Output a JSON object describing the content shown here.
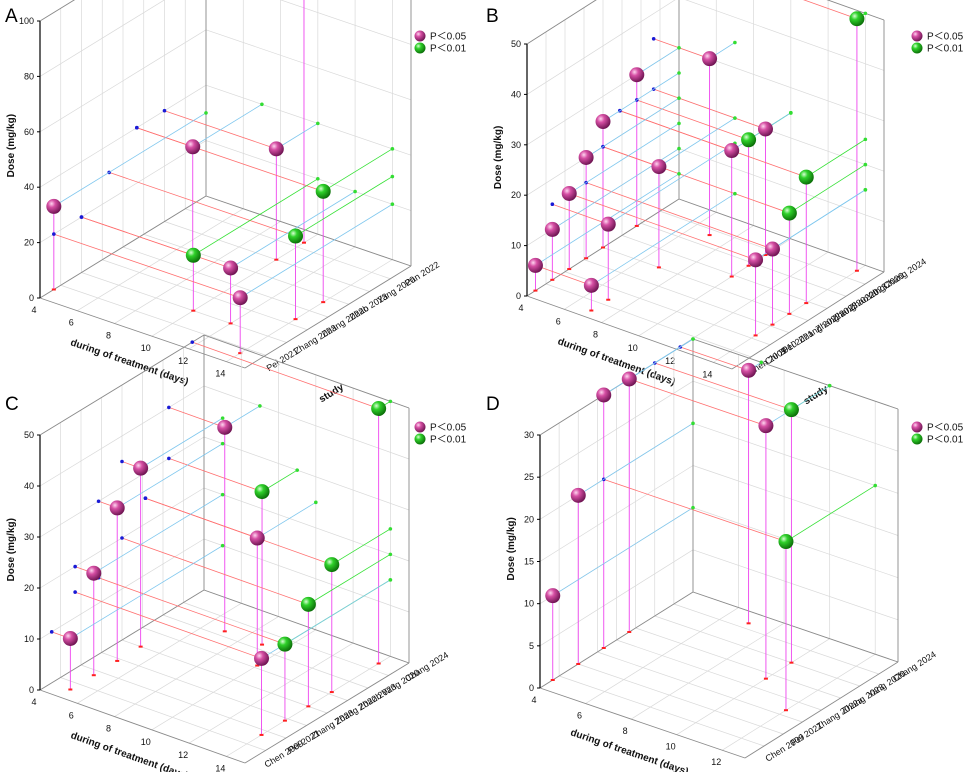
{
  "figure": {
    "colors": {
      "p005": "#d0459c",
      "p001": "#2fcf2a",
      "stem": "#ee44ee",
      "grid": "#d9d9d9",
      "proj_red": "#ff7070",
      "proj_blue": "#7fc7ee",
      "proj_green": "#33e033"
    }
  },
  "chart_data": [
    {
      "type": "scatter",
      "panel": "A",
      "xlabel": "during of treatment (days)",
      "ylabel": "Dose (mg/kg)",
      "zlabel": "study",
      "x_ticks": [
        "4",
        "6",
        "8",
        "10",
        "12",
        "14"
      ],
      "y_ticks": [
        "0",
        "20",
        "40",
        "60",
        "80",
        "100"
      ],
      "studies": [
        "Pei 2021",
        "Zhang 2023",
        "Zhang 2022b",
        "Zhao 2023",
        "Yang 2020",
        "Pan 2022"
      ],
      "xlim": [
        4,
        15
      ],
      "ylim": [
        0,
        100
      ],
      "legend": [
        "P＜0.05",
        "P＜0.01"
      ],
      "points": [
        {
          "study": "Pei 2021",
          "days": 4,
          "dose": 30,
          "p": "P＜0.05"
        },
        {
          "study": "Pei 2021",
          "days": 14,
          "dose": 20,
          "p": "P＜0.05"
        },
        {
          "study": "Zhang 2023",
          "days": 12,
          "dose": 20,
          "p": "P＜0.05"
        },
        {
          "study": "Zhang 2023",
          "days": 10,
          "dose": 20,
          "p": "P＜0.01"
        },
        {
          "study": "Zhang 2022b",
          "days": 14,
          "dose": 30,
          "p": "P＜0.01"
        },
        {
          "study": "Zhao 2023",
          "days": 7,
          "dose": 40,
          "p": "P＜0.05"
        },
        {
          "study": "Zhao 2023",
          "days": 14,
          "dose": 40,
          "p": "P＜0.01"
        },
        {
          "study": "Yang 2020",
          "days": 10,
          "dose": 40,
          "p": "P＜0.05"
        },
        {
          "study": "Pan 2022",
          "days": 10,
          "dose": 100,
          "p": "P＜0.05"
        }
      ]
    },
    {
      "type": "scatter",
      "panel": "B",
      "xlabel": "during of treatment (days)",
      "ylabel": "Dose (mg/kg)",
      "zlabel": "study",
      "x_ticks": [
        "4",
        "6",
        "8",
        "10",
        "12",
        "14"
      ],
      "y_ticks": [
        "0",
        "10",
        "20",
        "30",
        "40",
        "50"
      ],
      "studies": [
        "Chen 2009",
        "Chi 2010",
        "Pei 2021",
        "Zhang 2022a",
        "Zhang 2023",
        "Zhang 2022b",
        "Zhao 2023",
        "Yang 2020",
        "Chang 2024"
      ],
      "xlim": [
        4,
        15
      ],
      "ylim": [
        0,
        50
      ],
      "legend": [
        "P＜0.05",
        "P＜0.01"
      ],
      "points": [
        {
          "study": "Chen 2009",
          "days": 4,
          "dose": 5,
          "p": "P＜0.05"
        },
        {
          "study": "Chen 2009",
          "days": 7,
          "dose": 5,
          "p": "P＜0.05"
        },
        {
          "study": "Chi 2010",
          "days": 4,
          "dose": 10,
          "p": "P＜0.05"
        },
        {
          "study": "Chi 2010",
          "days": 7,
          "dose": 15,
          "p": "P＜0.05"
        },
        {
          "study": "Pei 2021",
          "days": 4,
          "dose": 15,
          "p": "P＜0.05"
        },
        {
          "study": "Pei 2021",
          "days": 14,
          "dose": 15,
          "p": "P＜0.05"
        },
        {
          "study": "Zhang 2022a",
          "days": 4,
          "dose": 20,
          "p": "P＜0.05"
        },
        {
          "study": "Zhang 2022a",
          "days": 14,
          "dose": 15,
          "p": "P＜0.05"
        },
        {
          "study": "Zhang 2023",
          "days": 4,
          "dose": 25,
          "p": "P＜0.05"
        },
        {
          "study": "Zhang 2023",
          "days": 7,
          "dose": 20,
          "p": "P＜0.05"
        },
        {
          "study": "Zhang 2023",
          "days": 14,
          "dose": 20,
          "p": "P＜0.01"
        },
        {
          "study": "Zhang 2022b",
          "days": 10,
          "dose": 25,
          "p": "P＜0.05"
        },
        {
          "study": "Zhang 2022b",
          "days": 14,
          "dose": 25,
          "p": "P＜0.01"
        },
        {
          "study": "Zhao 2023",
          "days": 4,
          "dose": 30,
          "p": "P＜0.05"
        },
        {
          "study": "Zhao 2023",
          "days": 10,
          "dose": 25,
          "p": "P＜0.01"
        },
        {
          "study": "Yang 2020",
          "days": 10,
          "dose": 25,
          "p": "P＜0.05"
        },
        {
          "study": "Yang 2020",
          "days": 7,
          "dose": 35,
          "p": "P＜0.05"
        },
        {
          "study": "Chang 2024",
          "days": 14,
          "dose": 50,
          "p": "P＜0.01"
        }
      ]
    },
    {
      "type": "scatter",
      "panel": "C",
      "xlabel": "during of treatment (days)",
      "ylabel": "Dose (mg/kg)",
      "zlabel": "study",
      "x_ticks": [
        "4",
        "6",
        "8",
        "10",
        "12",
        "14"
      ],
      "y_ticks": [
        "0",
        "10",
        "20",
        "30",
        "40",
        "50"
      ],
      "studies": [
        "Chen 2009",
        "Pei 2021",
        "Zhang 2023",
        "Zhang 2022b",
        "Zhao 2023",
        "Yang 2020",
        "Chang 2024"
      ],
      "xlim": [
        4,
        15
      ],
      "ylim": [
        0,
        50
      ],
      "legend": [
        "P＜0.05",
        "P＜0.01"
      ],
      "points": [
        {
          "study": "Chen 2009",
          "days": 5,
          "dose": 10,
          "p": "P＜0.05"
        },
        {
          "study": "Pei 2021",
          "days": 5,
          "dose": 20,
          "p": "P＜0.05"
        },
        {
          "study": "Pei 2021",
          "days": 14,
          "dose": 15,
          "p": "P＜0.05"
        },
        {
          "study": "Zhang 2023",
          "days": 5,
          "dose": 30,
          "p": "P＜0.05"
        },
        {
          "study": "Zhang 2023",
          "days": 14,
          "dose": 15,
          "p": "P＜0.01"
        },
        {
          "study": "Zhang 2022b",
          "days": 5,
          "dose": 35,
          "p": "P＜0.05"
        },
        {
          "study": "Zhang 2022b",
          "days": 14,
          "dose": 20,
          "p": "P＜0.01"
        },
        {
          "study": "Zhao 2023",
          "days": 10,
          "dose": 25,
          "p": "P＜0.05"
        },
        {
          "study": "Zhao 2023",
          "days": 14,
          "dose": 25,
          "p": "P＜0.01"
        },
        {
          "study": "Yang 2020",
          "days": 9,
          "dose": 30,
          "p": "P＜0.01"
        },
        {
          "study": "Yang 2020",
          "days": 7,
          "dose": 40,
          "p": "P＜0.05"
        },
        {
          "study": "Chang 2024",
          "days": 14,
          "dose": 50,
          "p": "P＜0.01"
        }
      ]
    },
    {
      "type": "scatter",
      "panel": "D",
      "xlabel": "during of treatment (days)",
      "ylabel": "Dose (mg/kg)",
      "zlabel": "study",
      "x_ticks": [
        "4",
        "6",
        "8",
        "10",
        "12"
      ],
      "y_ticks": [
        "0",
        "5",
        "10",
        "15",
        "20",
        "25",
        "30"
      ],
      "studies": [
        "Chen 2009",
        "Pei 2021",
        "Zhang 2022a",
        "Zhang 2023",
        "Yang 2020",
        "Chang 2024"
      ],
      "xlim": [
        4,
        13
      ],
      "ylim": [
        0,
        30
      ],
      "legend": [
        "P＜0.05",
        "P＜0.01"
      ],
      "points": [
        {
          "study": "Chen 2009",
          "days": 4,
          "dose": 10,
          "p": "P＜0.05"
        },
        {
          "study": "Pei 2021",
          "days": 4,
          "dose": 20,
          "p": "P＜0.05"
        },
        {
          "study": "Zhang 2022a",
          "days": 4,
          "dose": 30,
          "p": "P＜0.05"
        },
        {
          "study": "Zhang 2022a",
          "days": 12,
          "dose": 20,
          "p": "P＜0.01"
        },
        {
          "study": "Zhang 2023",
          "days": 4,
          "dose": 30,
          "p": "P＜0.05"
        },
        {
          "study": "Zhang 2023",
          "days": 10,
          "dose": 30,
          "p": "P＜0.05"
        },
        {
          "study": "Yang 2020",
          "days": 10,
          "dose": 30,
          "p": "P＜0.01"
        },
        {
          "study": "Chang 2024",
          "days": 7,
          "dose": 35,
          "p": "P＜0.05"
        }
      ]
    }
  ]
}
